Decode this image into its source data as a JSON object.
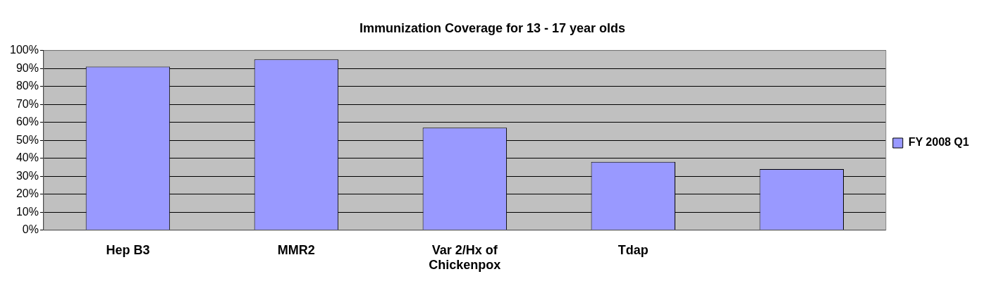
{
  "chart_data": {
    "type": "bar",
    "title": "Immunization Coverage for 13 - 17 year olds",
    "categories": [
      "Hep B3",
      "MMR2",
      "Var 2/Hx of Chickenpox",
      "Tdap",
      null
    ],
    "series": [
      {
        "name": "FY 2008 Q1",
        "color": "#9999ff",
        "values": [
          91,
          95,
          57,
          38,
          34
        ]
      }
    ],
    "ylim": [
      0,
      100
    ],
    "yticks": [
      {
        "value": 0,
        "label": "0%"
      },
      {
        "value": 10,
        "label": "10%"
      },
      {
        "value": 20,
        "label": "20%"
      },
      {
        "value": 30,
        "label": "30%"
      },
      {
        "value": 40,
        "label": "40%"
      },
      {
        "value": 50,
        "label": "50%"
      },
      {
        "value": 60,
        "label": "60%"
      },
      {
        "value": 70,
        "label": "70%"
      },
      {
        "value": 80,
        "label": "80%"
      },
      {
        "value": 90,
        "label": "90%"
      },
      {
        "value": 100,
        "label": "100%"
      }
    ],
    "grid": "y",
    "legend": "right"
  }
}
